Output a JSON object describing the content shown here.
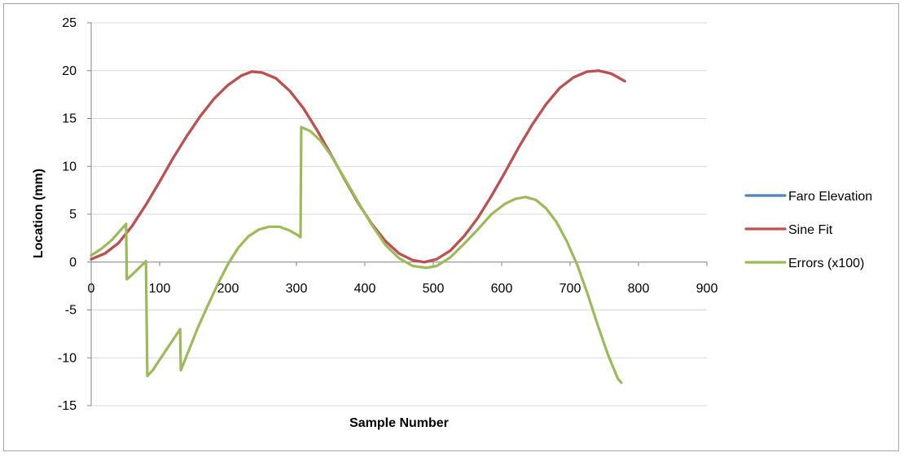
{
  "chart_data": {
    "type": "line",
    "title": "",
    "xlabel": "Sample Number",
    "ylabel": "Location (mm)",
    "xlim": [
      0,
      900
    ],
    "ylim": [
      -15,
      25
    ],
    "x_ticks": [
      0,
      100,
      200,
      300,
      400,
      500,
      600,
      700,
      800,
      900
    ],
    "y_ticks": [
      -15,
      -10,
      -5,
      0,
      5,
      10,
      15,
      20,
      25
    ],
    "grid": "horizontal",
    "legend_position": "right",
    "series": [
      {
        "name": "Faro Elevation",
        "color": "#4f81bd",
        "points": [
          [
            0,
            0.3
          ],
          [
            20,
            0.9
          ],
          [
            40,
            2.0
          ],
          [
            60,
            3.8
          ],
          [
            80,
            6.0
          ],
          [
            100,
            8.4
          ],
          [
            120,
            10.9
          ],
          [
            140,
            13.2
          ],
          [
            160,
            15.3
          ],
          [
            180,
            17.1
          ],
          [
            200,
            18.5
          ],
          [
            220,
            19.5
          ],
          [
            235,
            19.9
          ],
          [
            250,
            19.8
          ],
          [
            270,
            19.2
          ],
          [
            290,
            17.9
          ],
          [
            310,
            16.1
          ],
          [
            330,
            13.8
          ],
          [
            350,
            11.3
          ],
          [
            370,
            8.7
          ],
          [
            390,
            6.2
          ],
          [
            410,
            4.0
          ],
          [
            430,
            2.2
          ],
          [
            450,
            0.9
          ],
          [
            470,
            0.2
          ],
          [
            487,
            0.0
          ],
          [
            505,
            0.3
          ],
          [
            525,
            1.2
          ],
          [
            545,
            2.7
          ],
          [
            565,
            4.6
          ],
          [
            585,
            6.9
          ],
          [
            605,
            9.4
          ],
          [
            625,
            12.0
          ],
          [
            645,
            14.4
          ],
          [
            665,
            16.5
          ],
          [
            685,
            18.2
          ],
          [
            705,
            19.3
          ],
          [
            725,
            19.9
          ],
          [
            742,
            20.0
          ],
          [
            760,
            19.7
          ],
          [
            780,
            18.9
          ]
        ]
      },
      {
        "name": "Sine Fit",
        "color": "#c0504d",
        "points": [
          [
            0,
            0.3
          ],
          [
            20,
            0.9
          ],
          [
            40,
            2.0
          ],
          [
            60,
            3.8
          ],
          [
            80,
            6.0
          ],
          [
            100,
            8.4
          ],
          [
            120,
            10.9
          ],
          [
            140,
            13.2
          ],
          [
            160,
            15.3
          ],
          [
            180,
            17.1
          ],
          [
            200,
            18.5
          ],
          [
            220,
            19.5
          ],
          [
            235,
            19.9
          ],
          [
            250,
            19.8
          ],
          [
            270,
            19.2
          ],
          [
            290,
            17.9
          ],
          [
            310,
            16.1
          ],
          [
            330,
            13.8
          ],
          [
            350,
            11.3
          ],
          [
            370,
            8.7
          ],
          [
            390,
            6.2
          ],
          [
            410,
            4.0
          ],
          [
            430,
            2.2
          ],
          [
            450,
            0.9
          ],
          [
            470,
            0.2
          ],
          [
            487,
            0.0
          ],
          [
            505,
            0.3
          ],
          [
            525,
            1.2
          ],
          [
            545,
            2.7
          ],
          [
            565,
            4.6
          ],
          [
            585,
            6.9
          ],
          [
            605,
            9.4
          ],
          [
            625,
            12.0
          ],
          [
            645,
            14.4
          ],
          [
            665,
            16.5
          ],
          [
            685,
            18.2
          ],
          [
            705,
            19.3
          ],
          [
            725,
            19.9
          ],
          [
            742,
            20.0
          ],
          [
            760,
            19.7
          ],
          [
            780,
            18.9
          ]
        ]
      },
      {
        "name": "Errors (x100)",
        "color": "#9bbb59",
        "points": [
          [
            0,
            0.7
          ],
          [
            15,
            1.4
          ],
          [
            30,
            2.3
          ],
          [
            45,
            3.5
          ],
          [
            51,
            4.0
          ],
          [
            52,
            -1.8
          ],
          [
            60,
            -1.3
          ],
          [
            70,
            -0.6
          ],
          [
            80,
            0.1
          ],
          [
            82,
            -11.9
          ],
          [
            90,
            -11.3
          ],
          [
            100,
            -10.2
          ],
          [
            115,
            -8.6
          ],
          [
            130,
            -7.0
          ],
          [
            131,
            -11.3
          ],
          [
            140,
            -9.7
          ],
          [
            155,
            -7.0
          ],
          [
            170,
            -4.6
          ],
          [
            185,
            -2.3
          ],
          [
            200,
            -0.2
          ],
          [
            215,
            1.5
          ],
          [
            230,
            2.7
          ],
          [
            245,
            3.4
          ],
          [
            260,
            3.7
          ],
          [
            275,
            3.7
          ],
          [
            290,
            3.3
          ],
          [
            300,
            2.9
          ],
          [
            306,
            2.6
          ],
          [
            307,
            14.1
          ],
          [
            320,
            13.7
          ],
          [
            335,
            12.7
          ],
          [
            350,
            11.2
          ],
          [
            370,
            8.8
          ],
          [
            390,
            6.3
          ],
          [
            410,
            3.9
          ],
          [
            430,
            1.8
          ],
          [
            450,
            0.4
          ],
          [
            470,
            -0.4
          ],
          [
            490,
            -0.6
          ],
          [
            505,
            -0.4
          ],
          [
            525,
            0.5
          ],
          [
            545,
            1.9
          ],
          [
            565,
            3.4
          ],
          [
            585,
            5.0
          ],
          [
            605,
            6.1
          ],
          [
            620,
            6.6
          ],
          [
            635,
            6.8
          ],
          [
            650,
            6.5
          ],
          [
            665,
            5.6
          ],
          [
            680,
            4.2
          ],
          [
            695,
            2.2
          ],
          [
            710,
            -0.2
          ],
          [
            725,
            -3.2
          ],
          [
            740,
            -6.5
          ],
          [
            755,
            -9.6
          ],
          [
            770,
            -12.2
          ],
          [
            775,
            -12.6
          ]
        ]
      }
    ]
  }
}
